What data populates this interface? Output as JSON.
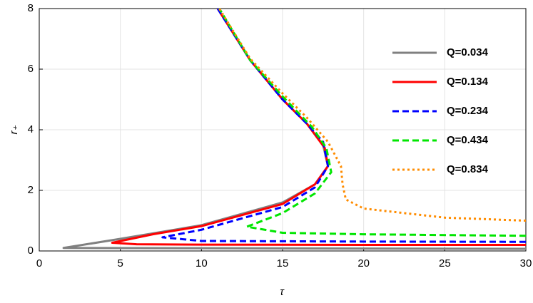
{
  "chart_data": {
    "type": "line",
    "x_label": "τ",
    "y_label": "r₊",
    "xlim": [
      0,
      30
    ],
    "ylim": [
      0,
      8
    ],
    "xticks": [
      0,
      5,
      10,
      15,
      20,
      25,
      30
    ],
    "yticks": [
      0,
      2,
      4,
      6,
      8
    ],
    "grid": true,
    "legend": "upper right",
    "series": [
      {
        "name": "Q=0.034",
        "color": "#808080",
        "dash": "solid",
        "x": [
          30,
          20,
          10,
          1.5,
          5,
          10,
          15,
          17,
          17.8,
          17.5,
          16.5,
          15,
          13,
          11
        ],
        "values": [
          0.07,
          0.08,
          0.09,
          0.1,
          0.4,
          0.85,
          1.6,
          2.2,
          2.8,
          3.5,
          4.2,
          5.0,
          6.3,
          8
        ]
      },
      {
        "name": "Q=0.134",
        "color": "#ff0000",
        "dash": "solid",
        "x": [
          30,
          20,
          10,
          6,
          4.5,
          7,
          10,
          15,
          17,
          17.8,
          17.6,
          16.5,
          15,
          13,
          11
        ],
        "values": [
          0.2,
          0.2,
          0.21,
          0.22,
          0.27,
          0.55,
          0.82,
          1.55,
          2.2,
          2.8,
          3.4,
          4.2,
          5.0,
          6.3,
          8
        ]
      },
      {
        "name": "Q=0.234",
        "color": "#0000ff",
        "dash": "dashed",
        "x": [
          30,
          20,
          10,
          7.6,
          10,
          15,
          17,
          17.8,
          17.5,
          16.5,
          15,
          13,
          11
        ],
        "values": [
          0.3,
          0.31,
          0.33,
          0.45,
          0.7,
          1.45,
          2.1,
          2.8,
          3.6,
          4.2,
          5.0,
          6.3,
          8
        ]
      },
      {
        "name": "Q=0.434",
        "color": "#00e600",
        "dash": "dashed",
        "x": [
          30,
          20,
          15,
          12.8,
          15,
          17,
          18,
          17.7,
          16.8,
          15,
          13,
          11.1
        ],
        "values": [
          0.5,
          0.55,
          0.6,
          0.8,
          1.25,
          1.9,
          2.6,
          3.4,
          4.1,
          5.1,
          6.3,
          8
        ]
      },
      {
        "name": "Q=0.834",
        "color": "#ff8c00",
        "dash": "dotted",
        "x": [
          30,
          25,
          20,
          18.9,
          18.7,
          18.6,
          17.8,
          16.5,
          15,
          13,
          11.1
        ],
        "values": [
          1.0,
          1.1,
          1.4,
          1.7,
          2.2,
          2.8,
          3.6,
          4.4,
          5.2,
          6.35,
          8
        ]
      }
    ]
  }
}
